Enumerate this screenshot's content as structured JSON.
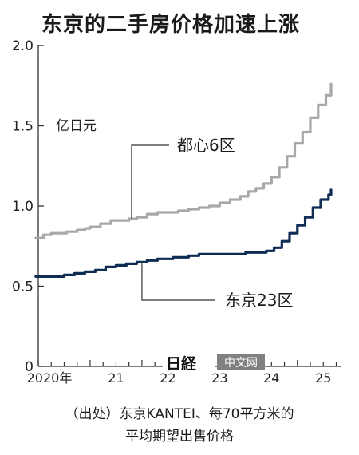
{
  "title": "东京的二手房价格加速上涨",
  "source_line1": "（出处）东京KANTEI、每70平方米的",
  "source_line2": "平均期望出售价格",
  "watermark": {
    "logo_text": "日経",
    "badge_text": "中文网"
  },
  "colors": {
    "series_tokyo23": "#0d2d55",
    "series_central6": "#a8a8a8",
    "axis": "#333333",
    "badge": "#808080"
  },
  "chart_data": {
    "type": "line",
    "title": "东京的二手房价格加速上涨",
    "unit_label": "亿日元",
    "ylim": [
      0,
      2.0
    ],
    "yticks": [
      "0",
      "0.5",
      "1.0",
      "1.5",
      "2.0"
    ],
    "ytick_values": [
      0,
      0.5,
      1.0,
      1.5,
      2.0
    ],
    "xlim": [
      2020,
      2025.85
    ],
    "xtick_values": [
      2020,
      2021,
      2022,
      2023,
      2024,
      2025
    ],
    "xtick_labels": [
      "2020年",
      "21",
      "22",
      "23",
      "24",
      "25"
    ],
    "grid": false,
    "series": [
      {
        "name": "都心6区",
        "x": [
          2019.95,
          2020.1,
          2020.25,
          2020.4,
          2020.55,
          2020.75,
          2020.9,
          2021.0,
          2021.2,
          2021.4,
          2021.6,
          2021.75,
          2021.9,
          2022.1,
          2022.3,
          2022.5,
          2022.7,
          2022.9,
          2023.1,
          2023.3,
          2023.5,
          2023.7,
          2023.9,
          2024.05,
          2024.2,
          2024.35,
          2024.5,
          2024.65,
          2024.8,
          2024.95,
          2025.1,
          2025.25,
          2025.4,
          2025.55,
          2025.65
        ],
        "values": [
          0.8,
          0.82,
          0.83,
          0.83,
          0.84,
          0.85,
          0.86,
          0.87,
          0.89,
          0.91,
          0.91,
          0.92,
          0.93,
          0.95,
          0.96,
          0.96,
          0.97,
          0.98,
          0.99,
          1.0,
          1.02,
          1.04,
          1.06,
          1.09,
          1.11,
          1.14,
          1.18,
          1.24,
          1.31,
          1.39,
          1.46,
          1.55,
          1.63,
          1.69,
          1.76
        ]
      },
      {
        "name": "东京23区",
        "x": [
          2019.95,
          2020.3,
          2020.5,
          2020.7,
          2020.9,
          2021.1,
          2021.3,
          2021.5,
          2021.7,
          2021.9,
          2022.1,
          2022.3,
          2022.6,
          2022.9,
          2023.1,
          2023.4,
          2023.7,
          2024.0,
          2024.2,
          2024.4,
          2024.55,
          2024.7,
          2024.85,
          2025.0,
          2025.15,
          2025.3,
          2025.45,
          2025.6,
          2025.65
        ],
        "values": [
          0.56,
          0.56,
          0.57,
          0.58,
          0.59,
          0.6,
          0.62,
          0.63,
          0.64,
          0.65,
          0.66,
          0.67,
          0.68,
          0.69,
          0.7,
          0.7,
          0.7,
          0.71,
          0.71,
          0.72,
          0.74,
          0.78,
          0.83,
          0.88,
          0.93,
          0.99,
          1.04,
          1.07,
          1.1
        ]
      }
    ],
    "annotations": [
      {
        "text": "都心6区",
        "series": "都心6区",
        "x_at": 2021.8
      },
      {
        "text": "东京23区",
        "series": "东京23区",
        "x_at": 2022.0
      }
    ]
  }
}
